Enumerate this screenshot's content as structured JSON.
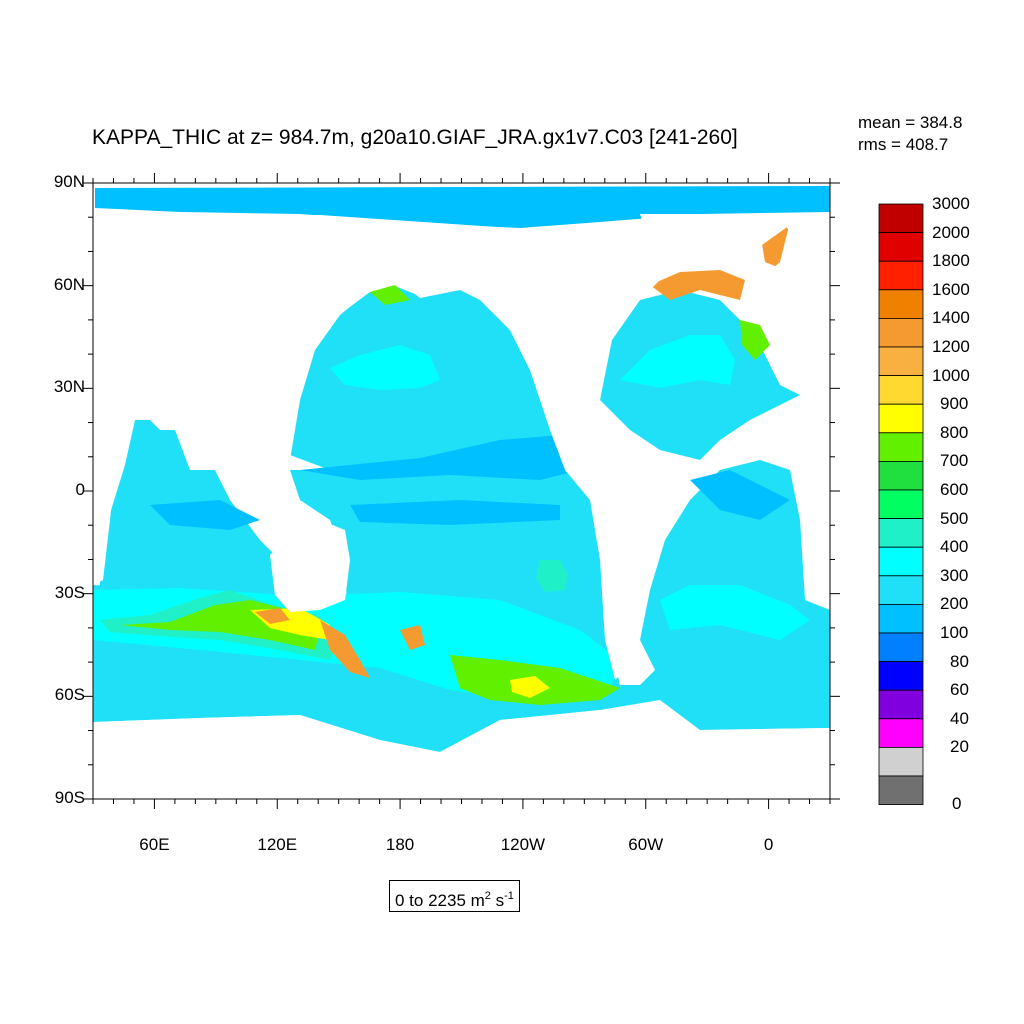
{
  "title": "KAPPA_THIC at z= 984.7m, g20a10.GIAF_JRA.gx1v7.C03 [241-260]",
  "stats": {
    "mean": "mean = 384.8",
    "rms": "rms = 408.7"
  },
  "lat_labels": [
    "90N",
    "60N",
    "30N",
    "0",
    "30S",
    "60S",
    "90S"
  ],
  "lon_labels": [
    "60E",
    "120E",
    "180",
    "120W",
    "60W",
    "0"
  ],
  "colorbar": {
    "levels": [
      "3000",
      "2000",
      "1800",
      "1600",
      "1400",
      "1200",
      "1000",
      "900",
      "800",
      "700",
      "600",
      "500",
      "400",
      "300",
      "200",
      "100",
      "80",
      "60",
      "40",
      "20",
      "0"
    ],
    "colors": [
      "#c00000",
      "#e00000",
      "#ff2000",
      "#f08000",
      "#f59a30",
      "#f8b040",
      "#ffd830",
      "#ffff00",
      "#60f000",
      "#20e040",
      "#00ff60",
      "#20f0c8",
      "#00ffff",
      "#20e0f8",
      "#00c0ff",
      "#0080ff",
      "#0000ff",
      "#8000e0",
      "#ff00ff",
      "#d0d0d0",
      "#707070"
    ]
  },
  "range": {
    "prefix": "0 to 2235 m",
    "exp1": "2",
    "mid": " s",
    "exp2": "-1"
  },
  "colors": {
    "ocean_base": "#20e0f8",
    "ocean_low": "#00c0ff",
    "ocean_mid": "#00ffff",
    "ocean_high": "#00ff60",
    "land": "#ffffff"
  }
}
